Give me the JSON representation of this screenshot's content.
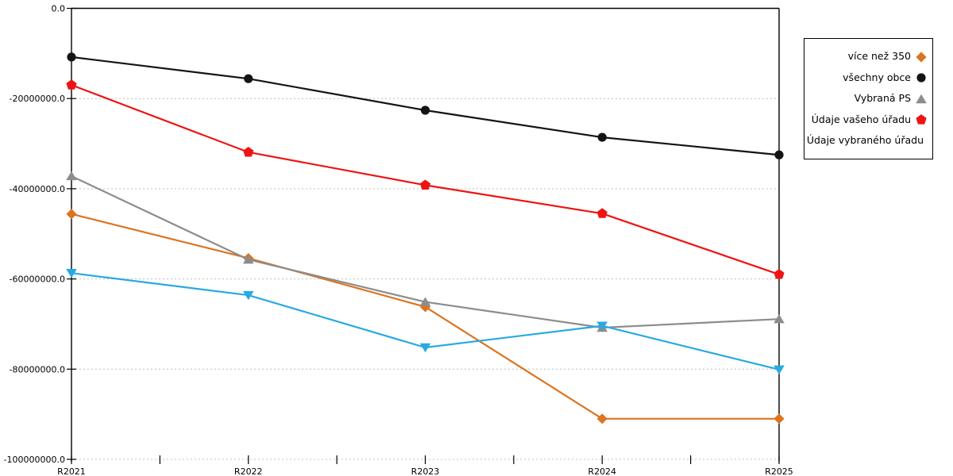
{
  "chart_data": {
    "type": "line",
    "title": "",
    "xlabel": "",
    "ylabel": "",
    "categories": [
      "R2021",
      "R2022",
      "R2023",
      "R2024",
      "R2025"
    ],
    "series": [
      {
        "name": "více než 350",
        "color": "#dd7420",
        "marker": "diamond",
        "values": [
          -45600000,
          -55400000,
          -66200000,
          -91000000,
          -91000000
        ]
      },
      {
        "name": "všechny obce",
        "color": "#141414",
        "marker": "circle",
        "values": [
          -10800000,
          -15600000,
          -22600000,
          -28600000,
          -32500000
        ]
      },
      {
        "name": "Vybraná PS",
        "color": "#8c8c8c",
        "marker": "triangle-up",
        "values": [
          -37200000,
          -55700000,
          -65100000,
          -70800000,
          -68900000
        ]
      },
      {
        "name": "Údaje vašeho úřadu",
        "color": "#ee1414",
        "marker": "pentagon",
        "values": [
          -17000000,
          -31900000,
          -39200000,
          -45500000,
          -59000000
        ]
      },
      {
        "name": "Údaje vybraného úřadu",
        "color": "#2aa9e0",
        "marker": "triangle-down",
        "values": [
          -58700000,
          -63600000,
          -75200000,
          -70400000,
          -80100000
        ]
      }
    ],
    "ylim": [
      -100000000,
      0
    ],
    "yticks": [
      0,
      -20000000,
      -40000000,
      -60000000,
      -80000000,
      -100000000
    ],
    "ytick_labels": [
      "0.0",
      "-20000000.0",
      "-40000000.0",
      "-60000000.0",
      "-80000000.0",
      "-100000000.0"
    ],
    "xtick_labels": [
      "R2021",
      "R2022",
      "R2023",
      "R2024",
      "R2025"
    ],
    "grid": "horizontal-dotted",
    "grid_color": "#c0c0c0",
    "axis_color": "#000000",
    "legend_position": "top-right"
  }
}
